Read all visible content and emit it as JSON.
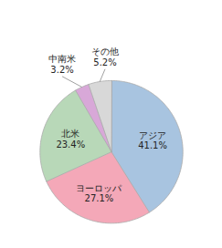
{
  "chart_data": {
    "type": "pie",
    "categories": [
      "アジア",
      "ヨーロッパ",
      "北米",
      "中南米",
      "その他"
    ],
    "values": [
      41.1,
      27.1,
      23.4,
      3.2,
      5.2
    ],
    "value_labels": [
      "41.1%",
      "27.1%",
      "23.4%",
      "3.2%",
      "5.2%"
    ],
    "colors": [
      "#a8c4e0",
      "#f4a8b8",
      "#b8d8b8",
      "#d8a8d8",
      "#d8d8d8"
    ],
    "data_labels": true
  }
}
